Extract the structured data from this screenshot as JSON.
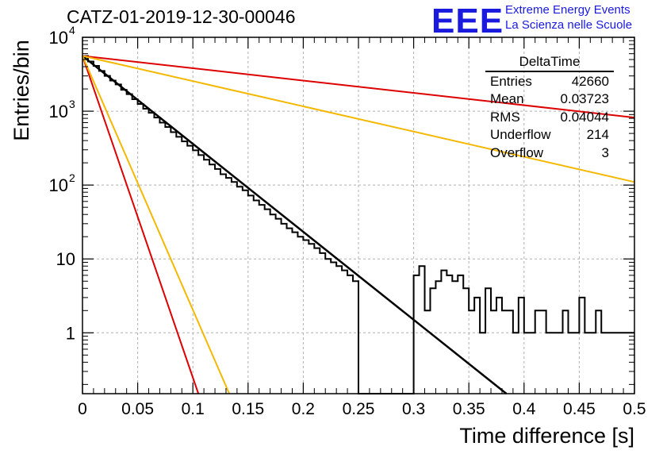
{
  "header": {
    "run_title": "CATZ-01-2019-12-30-00046",
    "logo_text": "EEE",
    "logo_line1": "Extreme Energy Events",
    "logo_line2": "La Scienza nelle Scuole"
  },
  "stats": {
    "title": "DeltaTime",
    "rows": [
      {
        "label": "Entries",
        "value": "42660"
      },
      {
        "label": "Mean",
        "value": "0.03723"
      },
      {
        "label": "RMS",
        "value": "0.04044"
      },
      {
        "label": "Underflow",
        "value": "214"
      },
      {
        "label": "Overflow",
        "value": "3"
      }
    ]
  },
  "colors": {
    "histogram": "#000000",
    "fit": "#000000",
    "red": "#dd0000",
    "orange": "#f5b800",
    "grid": "#b0b0b0"
  },
  "chart_data": {
    "type": "line",
    "xlabel": "Time difference [s]",
    "ylabel": "Entries/bin",
    "xlim": [
      0,
      0.5
    ],
    "ylim": [
      0.15,
      10000
    ],
    "ylog": true,
    "grid": true,
    "x_ticks": [
      "0",
      "0.05",
      "0.1",
      "0.15",
      "0.2",
      "0.25",
      "0.3",
      "0.35",
      "0.4",
      "0.45",
      "0.5"
    ],
    "y_ticks": [
      {
        "value": 1,
        "label": "1"
      },
      {
        "value": 10,
        "label": "10"
      },
      {
        "value": 100,
        "label": "10",
        "exp": "2"
      },
      {
        "value": 1000,
        "label": "10",
        "exp": "3"
      },
      {
        "value": 10000,
        "label": "10",
        "exp": "4"
      }
    ],
    "histogram": {
      "bin_width": 0.005,
      "x_start": 0,
      "values": [
        5600,
        4700,
        4100,
        3500,
        3000,
        2600,
        2300,
        1950,
        1700,
        1450,
        1250,
        1080,
        950,
        820,
        700,
        610,
        520,
        450,
        390,
        340,
        295,
        255,
        220,
        190,
        165,
        140,
        125,
        110,
        95,
        85,
        72,
        62,
        54,
        47,
        40,
        35,
        30,
        26,
        23,
        20,
        18,
        16,
        14,
        12,
        10,
        9,
        8,
        7,
        6,
        5,
        0.15,
        0.15,
        0.15,
        0.15,
        0.15,
        0.15,
        0.15,
        0.15,
        0.15,
        0.15,
        6,
        8,
        2,
        4,
        5,
        7,
        6,
        5,
        6,
        4,
        2,
        3,
        1,
        4,
        2,
        3,
        2,
        2,
        1,
        3,
        1,
        1,
        2,
        2,
        1,
        1,
        1,
        2,
        1,
        1,
        3,
        1,
        1,
        2,
        1,
        1,
        1,
        1,
        1,
        1
      ]
    },
    "series": [
      {
        "name": "",
        "color": "#000000",
        "x": [
          0,
          0.384
        ],
        "y": [
          5600,
          0.15
        ]
      },
      {
        "name": "",
        "color": "#dd0000",
        "x": [
          0,
          0.5
        ],
        "y": [
          5600,
          820
        ]
      },
      {
        "name": "",
        "color": "#f5b800",
        "x": [
          0,
          0.5
        ],
        "y": [
          5600,
          110
        ]
      },
      {
        "name": "",
        "color": "#dd0000",
        "x": [
          0,
          0.105
        ],
        "y": [
          5600,
          0.15
        ]
      },
      {
        "name": "",
        "color": "#f5b800",
        "x": [
          0,
          0.133
        ],
        "y": [
          5600,
          0.15
        ]
      }
    ]
  }
}
